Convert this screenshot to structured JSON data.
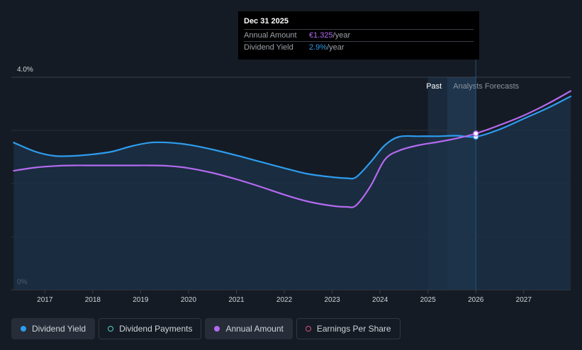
{
  "tooltip": {
    "date": "Dec 31 2025",
    "amount_label": "Annual Amount",
    "amount_value": "€1.325",
    "amount_unit": "/year",
    "yield_label": "Dividend Yield",
    "yield_value": "2.9%",
    "yield_unit": "/year"
  },
  "legend": [
    {
      "label": "Dividend Yield",
      "icon": "filled-dot",
      "color": "#2d9cee",
      "active": true
    },
    {
      "label": "Dividend Payments",
      "icon": "ring-dot",
      "color": "#4fd1c5",
      "active": false
    },
    {
      "label": "Annual Amount",
      "icon": "filled-dot",
      "color": "#b46af0",
      "active": true
    },
    {
      "label": "Earnings Per Share",
      "icon": "ring-dot",
      "color": "#d4507e",
      "active": false
    }
  ],
  "chart_data": {
    "type": "line",
    "y_ticks": [
      {
        "value": 4.0,
        "label": "4.0%"
      },
      {
        "value": 0,
        "label": "0%"
      }
    ],
    "ylim": [
      0,
      4.0
    ],
    "gridlines": [
      1.0,
      2.0,
      3.0
    ],
    "xlim": [
      2016.3,
      2027.98
    ],
    "x_ticks": [
      2017,
      2018,
      2019,
      2020,
      2021,
      2022,
      2023,
      2024,
      2025,
      2026,
      2027
    ],
    "x_tick_labels": [
      "2017",
      "2018",
      "2019",
      "2020",
      "2021",
      "2022",
      "2023",
      "2024",
      "2025",
      "2026",
      "2027"
    ],
    "past_label": "Past",
    "forecast_label": "Analysts Forecasts",
    "forecast_start": 2026.0,
    "series": [
      {
        "name": "Dividend Yield",
        "color": "#2d9cee",
        "x": [
          2016.35,
          2016.8,
          2017.2,
          2017.6,
          2018.0,
          2018.4,
          2018.8,
          2019.2,
          2019.6,
          2020.0,
          2020.5,
          2021.0,
          2021.5,
          2022.0,
          2022.5,
          2023.0,
          2023.3,
          2023.5,
          2023.8,
          2024.1,
          2024.4,
          2024.8,
          2025.2,
          2025.6,
          2026.0,
          2026.5,
          2027.0,
          2027.5,
          2027.98
        ],
        "y": [
          2.77,
          2.6,
          2.52,
          2.52,
          2.55,
          2.6,
          2.7,
          2.77,
          2.77,
          2.73,
          2.64,
          2.53,
          2.41,
          2.29,
          2.18,
          2.12,
          2.1,
          2.12,
          2.4,
          2.72,
          2.88,
          2.89,
          2.89,
          2.9,
          2.88,
          3.02,
          3.22,
          3.42,
          3.64
        ]
      },
      {
        "name": "Annual Amount",
        "color": "#b46af0",
        "x": [
          2016.35,
          2016.8,
          2017.2,
          2017.6,
          2018.0,
          2018.4,
          2018.8,
          2019.2,
          2019.6,
          2020.0,
          2020.5,
          2021.0,
          2021.5,
          2022.0,
          2022.5,
          2023.0,
          2023.3,
          2023.5,
          2023.8,
          2024.1,
          2024.4,
          2024.8,
          2025.2,
          2025.6,
          2026.0,
          2026.5,
          2027.0,
          2027.5,
          2027.98
        ],
        "y": [
          2.24,
          2.3,
          2.33,
          2.34,
          2.34,
          2.34,
          2.34,
          2.34,
          2.33,
          2.29,
          2.2,
          2.08,
          1.94,
          1.79,
          1.66,
          1.58,
          1.56,
          1.59,
          1.95,
          2.45,
          2.62,
          2.72,
          2.78,
          2.85,
          2.94,
          3.1,
          3.28,
          3.5,
          3.74
        ]
      }
    ],
    "markers": [
      {
        "series": "Dividend Yield",
        "x": 2026.0,
        "y": 2.88
      },
      {
        "series": "Annual Amount",
        "x": 2026.0,
        "y": 2.94
      }
    ]
  }
}
